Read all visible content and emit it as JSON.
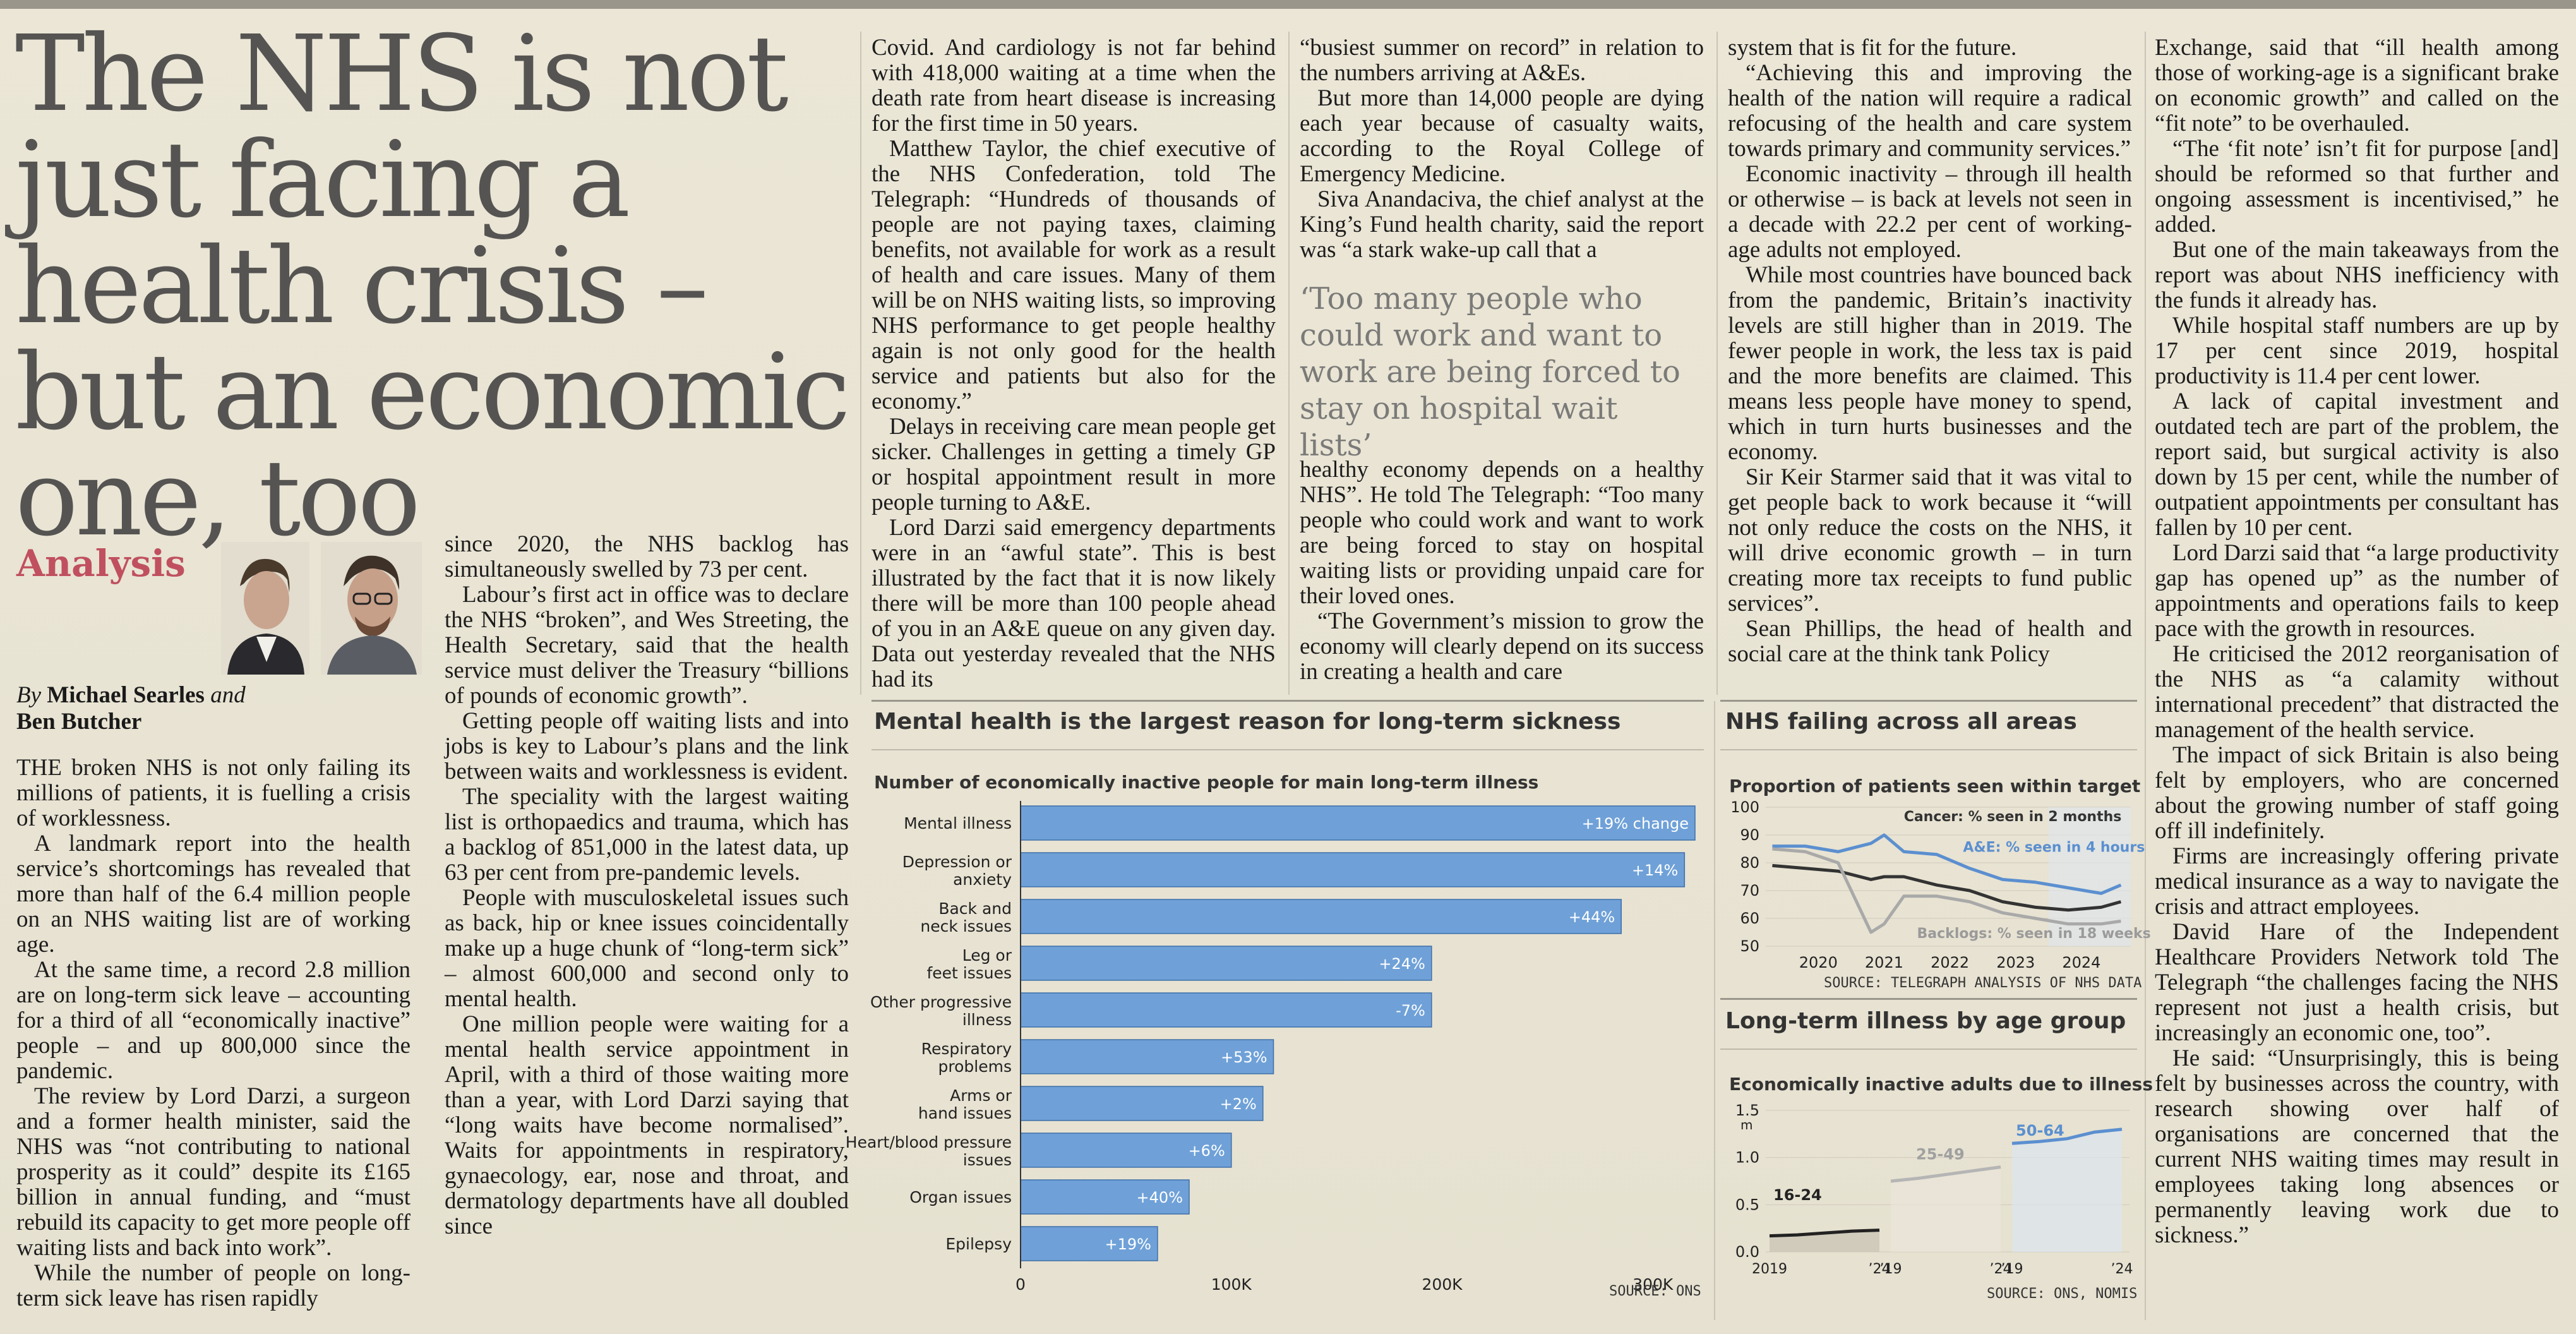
{
  "headline": "The NHS is not just facing a health crisis – but an economic one, too",
  "kicker": "Analysis",
  "byline": {
    "by": "By",
    "name1": "Michael Searles",
    "and": "and",
    "name2": "Ben Butcher"
  },
  "col1": [
    "THE broken NHS is not only failing its millions of patients, it is fuelling a crisis of worklessness.",
    "A landmark report into the health service’s shortcomings has revealed that more than half of the 6.4 million people on an NHS waiting list are of working age.",
    "At the same time, a record 2.8 million are on long-term sick leave – accounting for a third of all “economically inactive” people – and up 800,000 since the pandemic.",
    "The review by Lord Darzi, a surgeon and a former health minister, said the NHS was “not contributing to national prosperity as it could” despite its £165 billion in annual funding, and “must rebuild its capacity to get more people off waiting lists and back into work”.",
    "While the number of people on long-term sick leave has risen rapidly"
  ],
  "col2": [
    "since 2020, the NHS backlog has simultaneously swelled by 73 per cent.",
    "Labour’s first act in office was to declare the NHS “broken”, and Wes Streeting, the Health Secretary, said that the health service must deliver the Treasury “billions of pounds of economic growth”.",
    "Getting people off waiting lists and into jobs is key to Labour’s plans and the link between waits and worklessness is evident.",
    "The speciality with the largest waiting list is orthopaedics and trauma, which has a backlog of 851,000 in the latest data, up 63 per cent from pre-pandemic levels.",
    "People with musculoskeletal issues such as back, hip or knee issues coincidentally make up a huge chunk of “long-term sick” – almost 600,000 and second only to mental health.",
    "One million people were waiting for a mental health service appointment in April, with a third of those waiting more than a year, with Lord Darzi saying that “long waits have become normalised”. Waits for appointments in respiratory, gynaecology, ear, nose and throat, and dermatology departments have all doubled since"
  ],
  "col3": [
    "Covid. And cardiology is not far behind with 418,000 waiting at a time when the death rate from heart disease is increasing for the first time in 50 years.",
    "Matthew Taylor, the chief executive of the NHS Confederation, told The Telegraph: “Hundreds of thousands of people are not paying taxes, claiming benefits, not available for work as a result of health and care issues. Many of them will be on NHS waiting lists, so improving NHS performance to get people healthy again is not only good for the health service and patients but also for the economy.”",
    "Delays in receiving care mean people get sicker. Challenges in getting a timely GP or hospital appointment result in more people turning to A&E.",
    "Lord Darzi said emergency departments were in an “awful state”. This is best illustrated by the fact that it is now likely there will be more than 100 people ahead of you in an A&E queue on any given day. Data out yesterday revealed that the NHS had its"
  ],
  "col4a": [
    "“busiest summer on record” in relation to the numbers arriving at A&Es.",
    "But more than 14,000 people are dying each year because of casualty waits, according to the Royal College of Emergency Medicine.",
    "Siva Anandaciva, the chief analyst at the King’s Fund health charity, said the report was “a stark wake-up call that a"
  ],
  "pullquote": "‘Too many people who could work and want to work are being forced to stay on hospital wait lists’",
  "col4b": [
    "healthy economy depends on a healthy NHS”. He told The Telegraph: “Too many people who could work and want to work are being forced to stay on hospital waiting lists or providing unpaid care for their loved ones.",
    "“The Government’s mission to grow the economy will clearly depend on its success in creating a health and care"
  ],
  "col5": [
    "system that is fit for the future.",
    "“Achieving this and improving the health of the nation will require a radical refocusing of the health and care system towards primary and community services.”",
    "Economic inactivity – through ill health or otherwise – is back at levels not seen in a decade with 22.2 per cent of working-age adults not employed.",
    "While most countries have bounced back from the pandemic, Britain’s inactivity levels are still higher than in 2019. The fewer people in work, the less tax is paid and the more benefits are claimed. This means less people have money to spend, which in turn hurts businesses and the economy.",
    "Sir Keir Starmer said that it was vital to get people back to work because it “will not only reduce the costs on the NHS, it will drive economic growth – in turn creating more tax receipts to fund public services”.",
    "Sean Phillips, the head of health and social care at the think tank Policy"
  ],
  "col6": [
    "Exchange, said that “ill health among those of working-age is a significant brake on economic growth” and called on the “fit note” to be overhauled.",
    "“The ‘fit note’ isn’t fit for purpose [and] should be reformed so that further and ongoing assessment is incentivised,” he added.",
    "But one of the main takeaways from the report was about NHS inefficiency with the funds it already has.",
    "While hospital staff numbers are up by 17 per cent since 2019, hospital productivity is 11.4 per cent lower.",
    "A lack of capital investment and outdated tech are part of the problem, the report said, but surgical activity is also down by 15 per cent, while the number of outpatient appointments per consultant has fallen by 10 per cent.",
    "Lord Darzi said that “a large productivity gap has opened up” as the number of appointments and operations fails to keep pace with the growth in resources.",
    "He criticised the 2012 reorganisation of the NHS as “a calamity without international precedent” that distracted the management of the health service.",
    "The impact of sick Britain is also being felt by employers, who are concerned about the growing number of staff going off ill indefinitely.",
    "Firms are increasingly offering private medical insurance as a way to navigate the crisis and attract employees.",
    "David Hare of the Independent Healthcare Providers Network told The Telegraph “the challenges facing the NHS represent not just a health crisis, but increasingly an economic one, too”.",
    "He said: “Unsurprisingly, this is being felt by businesses across the country, with research showing over half of organisations are concerned that the current NHS waiting times may result in employees taking long absences or permanently leaving work due to sickness.”"
  ],
  "chart_data": [
    {
      "type": "bar",
      "title": "Mental health is the largest reason for long-term sickness",
      "subtitle": "Number of economically inactive people for main long-term illness",
      "categories": [
        "Mental illness",
        "Depression or anxiety",
        "Back and neck issues",
        "Leg or feet issues",
        "Other progressive illness",
        "Respiratory problems",
        "Arms or hand issues",
        "Heart/blood pressure issues",
        "Organ issues",
        "Epilepsy"
      ],
      "values": [
        320000,
        315000,
        285000,
        195000,
        195000,
        120000,
        115000,
        100000,
        80000,
        65000
      ],
      "labels": [
        "+19% change",
        "+14%",
        "+44%",
        "+24%",
        "-7%",
        "+53%",
        "+2%",
        "+6%",
        "+40%",
        "+19%"
      ],
      "xlim": [
        0,
        320000
      ],
      "ticks": [
        "0",
        "100K",
        "200K",
        "300K"
      ],
      "tick_values": [
        0,
        100000,
        200000,
        300000
      ],
      "source": "SOURCE: ONS",
      "color": "#6fa1d8"
    },
    {
      "type": "line",
      "title": "NHS failing across all areas",
      "subtitle": "Proportion of patients seen within target",
      "x": [
        2019.3,
        2019.8,
        2020.3,
        2020.8,
        2021.0,
        2021.3,
        2021.8,
        2022.3,
        2022.8,
        2023.3,
        2023.8,
        2024.3,
        2024.6
      ],
      "series": [
        {
          "name": "Cancer: % seen in 2 months",
          "values": [
            79,
            78,
            77,
            74,
            75,
            75,
            72,
            70,
            66,
            64,
            63,
            64,
            66
          ],
          "color": "#333333"
        },
        {
          "name": "A&E: % seen in 4 hours",
          "values": [
            86,
            86,
            84,
            87,
            90,
            84,
            83,
            78,
            74,
            73,
            71,
            69,
            72
          ],
          "color": "#5b8fd0"
        },
        {
          "name": "Backlogs: % seen in 18 weeks",
          "values": [
            85,
            84,
            80,
            55,
            58,
            68,
            68,
            66,
            62,
            60,
            58,
            58,
            59
          ],
          "color": "#a9a9a9"
        }
      ],
      "ylim": [
        50,
        100
      ],
      "yticks": [
        "50",
        "60",
        "70",
        "80",
        "90",
        "100"
      ],
      "xticks": [
        "2020",
        "2021",
        "2022",
        "2023",
        "2024"
      ],
      "source": "SOURCE: TELEGRAPH ANALYSIS OF NHS DATA"
    },
    {
      "type": "line",
      "title": "Long-term illness by age group",
      "subtitle": "Economically inactive adults due to illness",
      "yunit": "m",
      "series": [
        {
          "name": "16-24",
          "values": [
            0.17,
            0.18,
            0.2,
            0.22,
            0.23
          ],
          "color": "#222222"
        },
        {
          "name": "25-49",
          "values": [
            0.75,
            0.78,
            0.82,
            0.86,
            0.9
          ],
          "color": "#b5b5b5"
        },
        {
          "name": "50-64",
          "values": [
            1.15,
            1.17,
            1.2,
            1.27,
            1.3
          ],
          "color": "#5b8fd0"
        }
      ],
      "ylim": [
        0,
        1.5
      ],
      "yticks": [
        "0.0",
        "0.5",
        "1.0",
        "1.5"
      ],
      "xticks": [
        "2019",
        "’24",
        "’19",
        "’24",
        "’19",
        "’24"
      ],
      "source": "SOURCE: ONS, NOMIS"
    }
  ]
}
